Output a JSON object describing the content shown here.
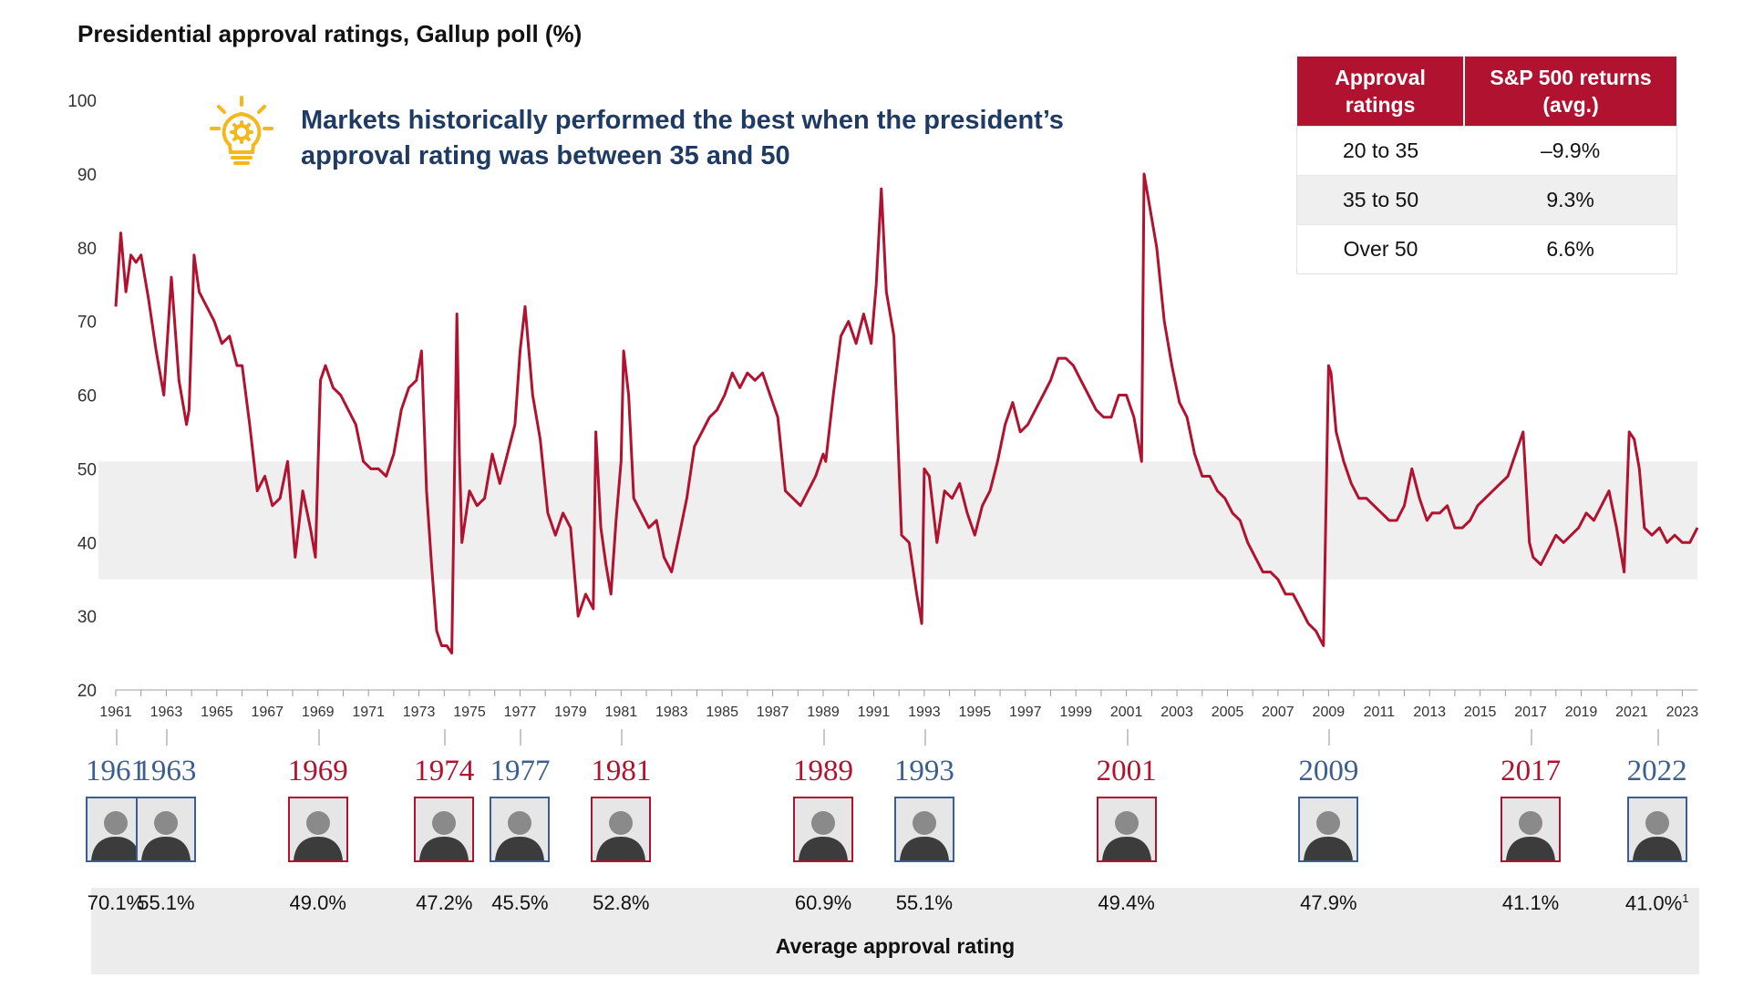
{
  "title": "Presidential approval ratings, Gallup poll (%)",
  "insight": {
    "line1": "Markets historically performed the best when the president’s",
    "line2": "approval rating was between 35 and 50",
    "icon": "lightbulb-icon",
    "icon_color": "#f2b81c"
  },
  "table": {
    "headers": [
      "Approval ratings",
      "S&P 500 returns (avg.)"
    ],
    "rows": [
      [
        "20 to 35",
        "–9.9%"
      ],
      [
        "35 to 50",
        "9.3%"
      ],
      [
        "Over 50",
        "6.6%"
      ]
    ],
    "header_color": "#b0122f"
  },
  "colors": {
    "line": "#b0122f",
    "band": "#efefef",
    "blue": "#3c5f8f",
    "red": "#b0122f"
  },
  "chart_data": {
    "type": "line",
    "ylim": [
      20,
      100
    ],
    "yticks": [
      20,
      30,
      40,
      50,
      60,
      70,
      80,
      90,
      100
    ],
    "xlim": [
      1961,
      2023.6
    ],
    "xticks": [
      "1961",
      "1963",
      "1965",
      "1967",
      "1969",
      "1971",
      "1973",
      "1975",
      "1977",
      "1979",
      "1981",
      "1983",
      "1985",
      "1987",
      "1989",
      "1991",
      "1993",
      "1995",
      "1997",
      "1999",
      "2001",
      "2003",
      "2005",
      "2007",
      "2009",
      "2011",
      "2013",
      "2015",
      "2017",
      "2019",
      "2021",
      "2023"
    ],
    "highlight_band": [
      35,
      51
    ],
    "grid": false,
    "series": [
      {
        "x": [
          1961.0,
          1961.2,
          1961.4,
          1961.6,
          1961.8,
          1962.0,
          1962.3,
          1962.6,
          1962.9,
          1963.2,
          1963.5,
          1963.8,
          1963.9,
          1964.1,
          1964.3,
          1964.6,
          1964.9,
          1965.2,
          1965.5,
          1965.8,
          1966.0,
          1966.3,
          1966.6,
          1966.9,
          1967.2,
          1967.5,
          1967.8,
          1968.1,
          1968.4,
          1968.7,
          1968.9,
          1969.1,
          1969.3,
          1969.6,
          1969.9,
          1970.2,
          1970.5,
          1970.8,
          1971.1,
          1971.4,
          1971.7,
          1972.0,
          1972.3,
          1972.6,
          1972.9,
          1973.1,
          1973.3,
          1973.5,
          1973.7,
          1973.9,
          1974.1,
          1974.3,
          1974.5,
          1974.6,
          1974.7,
          1975.0,
          1975.3,
          1975.6,
          1975.9,
          1976.2,
          1976.5,
          1976.8,
          1977.0,
          1977.2,
          1977.5,
          1977.8,
          1978.1,
          1978.4,
          1978.7,
          1979.0,
          1979.3,
          1979.6,
          1979.9,
          1980.0,
          1980.2,
          1980.4,
          1980.6,
          1980.8,
          1981.0,
          1981.1,
          1981.3,
          1981.5,
          1981.8,
          1982.1,
          1982.4,
          1982.7,
          1983.0,
          1983.3,
          1983.6,
          1983.9,
          1984.2,
          1984.5,
          1984.8,
          1985.1,
          1985.4,
          1985.7,
          1986.0,
          1986.3,
          1986.6,
          1986.9,
          1987.2,
          1987.5,
          1987.8,
          1988.1,
          1988.4,
          1988.7,
          1989.0,
          1989.1,
          1989.4,
          1989.7,
          1990.0,
          1990.3,
          1990.6,
          1990.9,
          1991.1,
          1991.3,
          1991.5,
          1991.8,
          1992.1,
          1992.4,
          1992.7,
          1992.9,
          1993.0,
          1993.2,
          1993.5,
          1993.8,
          1994.1,
          1994.4,
          1994.7,
          1995.0,
          1995.3,
          1995.6,
          1995.9,
          1996.2,
          1996.5,
          1996.8,
          1997.1,
          1997.4,
          1997.7,
          1998.0,
          1998.3,
          1998.6,
          1998.9,
          1999.2,
          1999.5,
          1999.8,
          2000.1,
          2000.4,
          2000.7,
          2001.0,
          2001.3,
          2001.6,
          2001.7,
          2001.9,
          2002.2,
          2002.5,
          2002.8,
          2003.1,
          2003.4,
          2003.7,
          2004.0,
          2004.3,
          2004.6,
          2004.9,
          2005.2,
          2005.5,
          2005.8,
          2006.1,
          2006.4,
          2006.7,
          2007.0,
          2007.3,
          2007.6,
          2007.9,
          2008.2,
          2008.5,
          2008.8,
          2009.0,
          2009.1,
          2009.3,
          2009.6,
          2009.9,
          2010.2,
          2010.5,
          2010.8,
          2011.1,
          2011.4,
          2011.7,
          2012.0,
          2012.3,
          2012.6,
          2012.9,
          2013.1,
          2013.4,
          2013.7,
          2014.0,
          2014.3,
          2014.6,
          2014.9,
          2015.2,
          2015.5,
          2015.8,
          2016.1,
          2016.4,
          2016.7,
          2016.95,
          2017.1,
          2017.4,
          2017.7,
          2018.0,
          2018.3,
          2018.6,
          2018.9,
          2019.2,
          2019.5,
          2019.8,
          2020.1,
          2020.4,
          2020.7,
          2020.9,
          2021.1,
          2021.3,
          2021.5,
          2021.8,
          2022.1,
          2022.4,
          2022.7,
          2023.0,
          2023.3,
          2023.6
        ],
        "y": [
          72,
          82,
          74,
          79,
          78,
          79,
          73,
          66,
          60,
          76,
          62,
          56,
          58,
          79,
          74,
          72,
          70,
          67,
          68,
          64,
          64,
          56,
          47,
          49,
          45,
          46,
          51,
          38,
          47,
          42,
          38,
          62,
          64,
          61,
          60,
          58,
          56,
          51,
          50,
          50,
          49,
          52,
          58,
          61,
          62,
          66,
          47,
          37,
          28,
          26,
          26,
          25,
          71,
          52,
          40,
          47,
          45,
          46,
          52,
          48,
          52,
          56,
          66,
          72,
          60,
          54,
          44,
          41,
          44,
          42,
          30,
          33,
          31,
          55,
          42,
          37,
          33,
          43,
          51,
          66,
          60,
          46,
          44,
          42,
          43,
          38,
          36,
          41,
          46,
          53,
          55,
          57,
          58,
          60,
          63,
          61,
          63,
          62,
          63,
          60,
          57,
          47,
          46,
          45,
          47,
          49,
          52,
          51,
          60,
          68,
          70,
          67,
          71,
          67,
          75,
          88,
          74,
          68,
          41,
          40,
          33,
          29,
          50,
          49,
          40,
          47,
          46,
          48,
          44,
          41,
          45,
          47,
          51,
          56,
          59,
          55,
          56,
          58,
          60,
          62,
          65,
          65,
          64,
          62,
          60,
          58,
          57,
          57,
          60,
          60,
          57,
          51,
          90,
          86,
          80,
          70,
          64,
          59,
          57,
          52,
          49,
          49,
          47,
          46,
          44,
          43,
          40,
          38,
          36,
          36,
          35,
          33,
          33,
          31,
          29,
          28,
          26,
          64,
          63,
          55,
          51,
          48,
          46,
          46,
          45,
          44,
          43,
          43,
          45,
          50,
          46,
          43,
          44,
          44,
          45,
          42,
          42,
          43,
          45,
          46,
          47,
          48,
          49,
          52,
          55,
          40,
          38,
          37,
          39,
          41,
          40,
          41,
          42,
          44,
          43,
          45,
          47,
          42,
          36,
          55,
          54,
          50,
          42,
          41,
          42,
          40,
          41,
          40,
          40,
          42
        ]
      }
    ]
  },
  "presidents": [
    {
      "year": "1961",
      "avg": "70.1%",
      "party": "blue"
    },
    {
      "year": "1963",
      "avg": "55.1%",
      "party": "blue"
    },
    {
      "year": "1969",
      "avg": "49.0%",
      "party": "red"
    },
    {
      "year": "1974",
      "avg": "47.2%",
      "party": "red"
    },
    {
      "year": "1977",
      "avg": "45.5%",
      "party": "blue"
    },
    {
      "year": "1981",
      "avg": "52.8%",
      "party": "red"
    },
    {
      "year": "1989",
      "avg": "60.9%",
      "party": "red"
    },
    {
      "year": "1993",
      "avg": "55.1%",
      "party": "blue"
    },
    {
      "year": "2001",
      "avg": "49.4%",
      "party": "red"
    },
    {
      "year": "2009",
      "avg": "47.9%",
      "party": "blue"
    },
    {
      "year": "2017",
      "avg": "41.1%",
      "party": "red"
    },
    {
      "year": "2022",
      "avg": "41.0%",
      "party": "blue",
      "footnote": "1"
    }
  ],
  "avg_label": "Average approval rating"
}
